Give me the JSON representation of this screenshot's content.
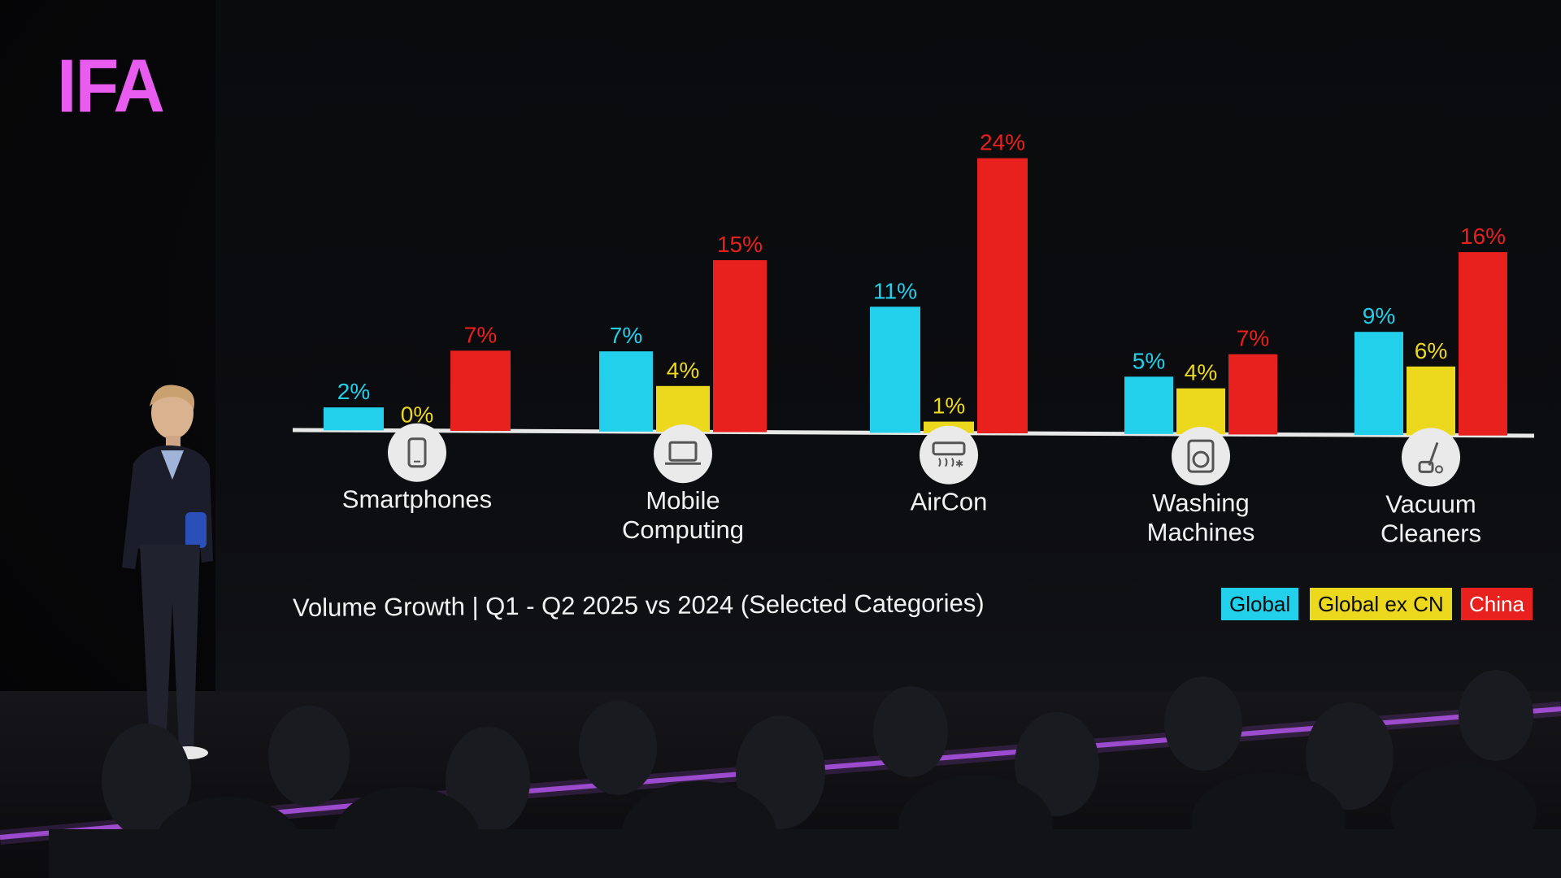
{
  "logo": {
    "text": "IFA",
    "color": "#e85df0"
  },
  "colors": {
    "global": "#22d0ec",
    "global_ex_cn": "#ecd91e",
    "china": "#e8201e",
    "baseline": "#e8e8e8",
    "icon_fill": "#eaeaea"
  },
  "chart_data": {
    "type": "bar",
    "title": "Volume Growth | Q1 - Q2 2025 vs 2024 (Selected Categories)",
    "categories": [
      {
        "label": "Smartphones",
        "lines": [
          "Smartphones"
        ],
        "icon": "smartphone-icon"
      },
      {
        "label": "Mobile Computing",
        "lines": [
          "Mobile",
          "Computing"
        ],
        "icon": "laptop-icon"
      },
      {
        "label": "AirCon",
        "lines": [
          "AirCon"
        ],
        "icon": "air-conditioner-icon"
      },
      {
        "label": "Washing Machines",
        "lines": [
          "Washing",
          "Machines"
        ],
        "icon": "washing-machine-icon"
      },
      {
        "label": "Vacuum Cleaners",
        "lines": [
          "Vacuum",
          "Cleaners"
        ],
        "icon": "vacuum-cleaner-icon"
      }
    ],
    "series": [
      {
        "name": "Global",
        "color": "#22d0ec",
        "values": [
          2,
          7,
          11,
          5,
          9
        ],
        "labels": [
          "2%",
          "7%",
          "11%",
          "5%",
          "9%"
        ]
      },
      {
        "name": "Global ex CN",
        "color": "#ecd91e",
        "values": [
          0,
          4,
          1,
          4,
          6
        ],
        "labels": [
          "0%",
          "4%",
          "1%",
          "4%",
          "6%"
        ]
      },
      {
        "name": "China",
        "color": "#e8201e",
        "values": [
          7,
          15,
          24,
          7,
          16
        ],
        "labels": [
          "7%",
          "15%",
          "24%",
          "7%",
          "16%"
        ]
      }
    ],
    "ylim": [
      0,
      24
    ],
    "grid": false,
    "legend_position": "bottom-right",
    "unit": "%"
  }
}
